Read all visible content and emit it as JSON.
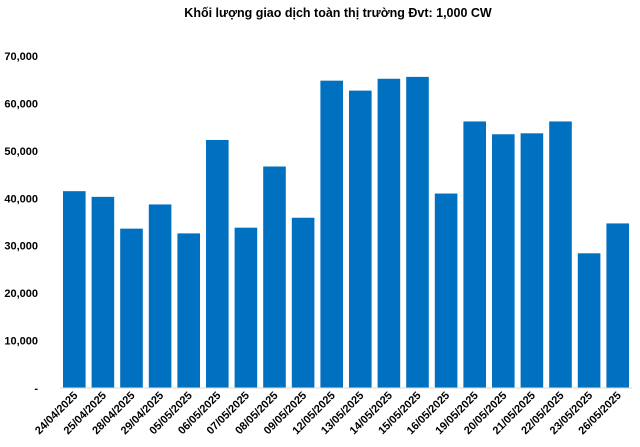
{
  "chart_data": {
    "type": "bar",
    "title": "Khối lượng giao dịch toàn thị trường Đvt: 1,000 CW",
    "xlabel": "",
    "ylabel": "",
    "categories": [
      "24/04/2025",
      "25/04/2025",
      "28/04/2025",
      "29/04/2025",
      "05/05/2025",
      "06/05/2025",
      "07/05/2025",
      "08/05/2025",
      "09/05/2025",
      "12/05/2025",
      "13/05/2025",
      "14/05/2025",
      "15/05/2025",
      "16/05/2025",
      "19/05/2025",
      "20/05/2025",
      "21/05/2025",
      "22/05/2025",
      "23/05/2025",
      "26/05/2025"
    ],
    "values": [
      41500,
      40300,
      33600,
      38700,
      32600,
      52300,
      33800,
      46700,
      35900,
      64800,
      62700,
      65200,
      65600,
      41000,
      56200,
      53500,
      53700,
      56200,
      28400,
      34700
    ],
    "ylim": [
      0,
      70000
    ],
    "yticks": [
      "-",
      "10,000",
      "20,000",
      "30,000",
      "40,000",
      "50,000",
      "60,000",
      "70,000"
    ],
    "bar_color": "#0070C0",
    "grid": false,
    "legend": "none"
  }
}
